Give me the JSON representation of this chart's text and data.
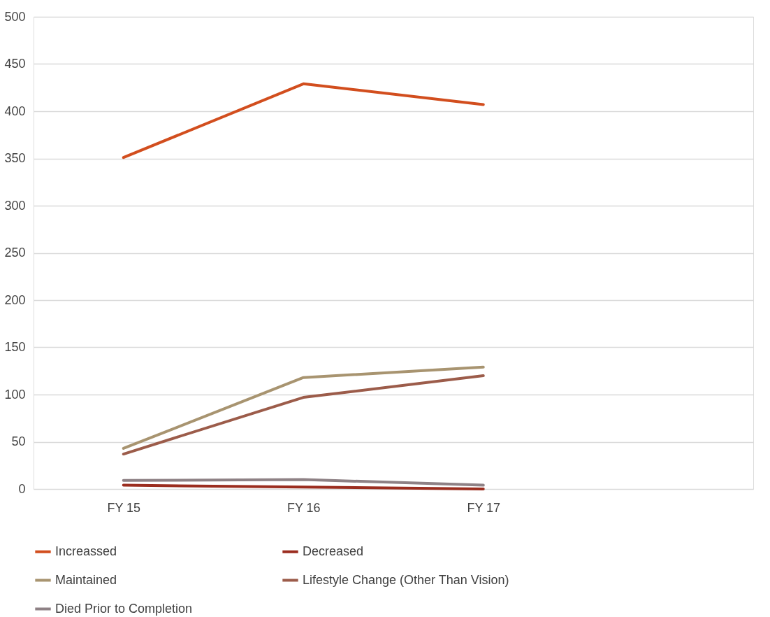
{
  "chart_data": {
    "type": "line",
    "categories": [
      "FY 15",
      "FY 16",
      "FY 17",
      null
    ],
    "series": [
      {
        "name": "Increassed",
        "color": "#d24e1e",
        "values": [
          351,
          429,
          407,
          null
        ]
      },
      {
        "name": "Decreased",
        "color": "#9b2d1f",
        "values": [
          4,
          2,
          0,
          null
        ]
      },
      {
        "name": "Maintained",
        "color": "#a89470",
        "values": [
          43,
          118,
          129,
          null
        ]
      },
      {
        "name": "Lifestyle Change (Other Than Vision)",
        "color": "#9c5c4a",
        "values": [
          37,
          97,
          120,
          null
        ]
      },
      {
        "name": "Died Prior to Completion",
        "color": "#8e8185",
        "values": [
          9,
          10,
          4,
          null
        ]
      }
    ],
    "ylim": [
      0,
      500
    ],
    "yticks": [
      0,
      50,
      100,
      150,
      200,
      250,
      300,
      350,
      400,
      450,
      500
    ],
    "grid": "y",
    "legend": "bottom",
    "marker": "none",
    "line_style": "solid"
  }
}
